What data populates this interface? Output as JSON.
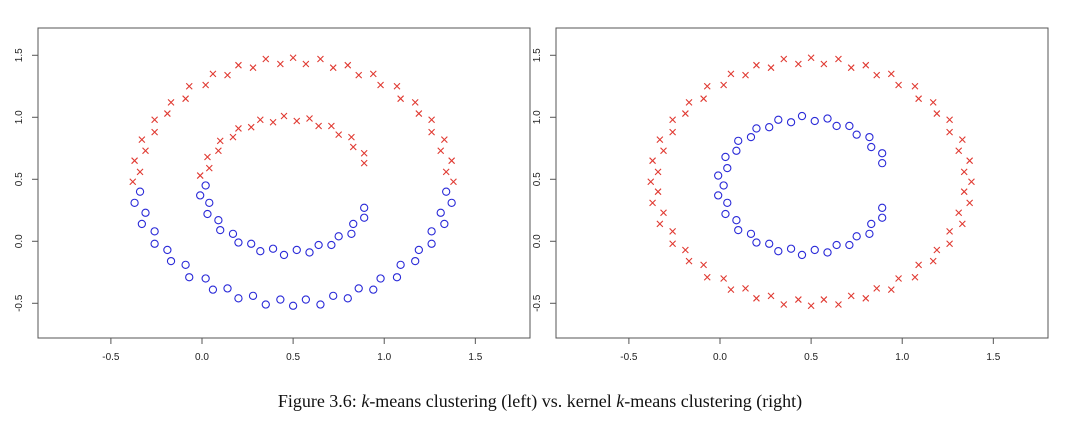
{
  "chart_data": [
    {
      "type": "scatter",
      "xlim": [
        -0.9,
        1.8
      ],
      "ylim": [
        -0.78,
        1.72
      ],
      "xticks": [
        -0.5,
        {
          "value": 0,
          "label": "0.0"
        },
        0.5,
        {
          "value": 1,
          "label": "1.0"
        },
        1.5
      ],
      "yticks": [
        -0.5,
        {
          "value": 0,
          "label": "0.0"
        },
        0.5,
        {
          "value": 1,
          "label": "1.0"
        },
        1.5
      ],
      "series": [
        {
          "color": "#e03a32",
          "marker": "x",
          "x": [
            1.38,
            1.37,
            1.33,
            1.26,
            1.17,
            1.07,
            0.94,
            0.8,
            0.65,
            0.5,
            0.35,
            0.2,
            0.06,
            -0.07,
            -0.17,
            -0.26,
            -0.33,
            -0.37,
            -0.38,
            1.34,
            1.31,
            1.26,
            1.19,
            1.09,
            0.98,
            0.86,
            0.72,
            0.57,
            0.43,
            0.28,
            0.14,
            0.02,
            -0.09,
            -0.19,
            -0.26,
            -0.31,
            -0.34,
            0.89,
            0.83,
            0.75,
            0.64,
            0.52,
            0.39,
            0.27,
            0.17,
            0.09,
            0.04,
            0.89,
            0.82,
            0.71,
            0.59,
            0.45,
            0.32,
            0.2,
            0.1,
            0.03,
            -0.01
          ],
          "values": [
            0.48,
            0.65,
            0.82,
            0.98,
            1.12,
            1.25,
            1.35,
            1.42,
            1.47,
            1.48,
            1.47,
            1.42,
            1.35,
            1.25,
            1.12,
            0.98,
            0.82,
            0.65,
            0.48,
            0.56,
            0.73,
            0.88,
            1.03,
            1.15,
            1.26,
            1.34,
            1.4,
            1.43,
            1.43,
            1.4,
            1.34,
            1.26,
            1.15,
            1.03,
            0.88,
            0.73,
            0.56,
            0.63,
            0.76,
            0.86,
            0.93,
            0.97,
            0.96,
            0.92,
            0.84,
            0.73,
            0.59,
            0.71,
            0.84,
            0.93,
            0.99,
            1.01,
            0.98,
            0.91,
            0.81,
            0.68,
            0.53
          ]
        },
        {
          "color": "#2a2ad8",
          "marker": "o",
          "x": [
            -0.37,
            -0.33,
            -0.26,
            -0.17,
            -0.07,
            0.06,
            0.2,
            0.35,
            0.5,
            0.65,
            0.8,
            0.94,
            1.07,
            1.17,
            1.26,
            1.33,
            1.37,
            -0.34,
            -0.31,
            -0.26,
            -0.19,
            -0.09,
            0.02,
            0.14,
            0.28,
            0.43,
            0.57,
            0.72,
            0.86,
            0.98,
            1.09,
            1.19,
            1.26,
            1.31,
            1.34,
            0.02,
            0.04,
            0.09,
            0.17,
            0.27,
            0.39,
            0.52,
            0.64,
            0.75,
            0.83,
            0.89,
            -0.01,
            0.03,
            0.1,
            0.2,
            0.32,
            0.45,
            0.59,
            0.71,
            0.82,
            0.89
          ],
          "values": [
            0.31,
            0.14,
            -0.02,
            -0.16,
            -0.29,
            -0.39,
            -0.46,
            -0.51,
            -0.52,
            -0.51,
            -0.46,
            -0.39,
            -0.29,
            -0.16,
            -0.02,
            0.14,
            0.31,
            0.4,
            0.23,
            0.08,
            -0.07,
            -0.19,
            -0.3,
            -0.38,
            -0.44,
            -0.47,
            -0.47,
            -0.44,
            -0.38,
            -0.3,
            -0.19,
            -0.07,
            0.08,
            0.23,
            0.4,
            0.45,
            0.31,
            0.17,
            0.06,
            -0.02,
            -0.06,
            -0.07,
            -0.03,
            0.04,
            0.14,
            0.27,
            0.37,
            0.22,
            0.09,
            -0.01,
            -0.08,
            -0.11,
            -0.09,
            -0.03,
            0.06,
            0.19
          ]
        }
      ]
    },
    {
      "type": "scatter",
      "xlim": [
        -0.9,
        1.8
      ],
      "ylim": [
        -0.78,
        1.72
      ],
      "xticks": [
        -0.5,
        {
          "value": 0,
          "label": "0.0"
        },
        0.5,
        {
          "value": 1,
          "label": "1.0"
        },
        1.5
      ],
      "yticks": [
        -0.5,
        {
          "value": 0,
          "label": "0.0"
        },
        0.5,
        {
          "value": 1,
          "label": "1.0"
        },
        1.5
      ],
      "series": [
        {
          "color": "#e03a32",
          "marker": "x",
          "x": [
            1.38,
            1.37,
            1.33,
            1.26,
            1.17,
            1.07,
            0.94,
            0.8,
            0.65,
            0.5,
            0.35,
            0.2,
            0.06,
            -0.07,
            -0.17,
            -0.26,
            -0.33,
            -0.37,
            -0.38,
            -0.37,
            -0.33,
            -0.26,
            -0.17,
            -0.07,
            0.06,
            0.2,
            0.35,
            0.5,
            0.65,
            0.8,
            0.94,
            1.07,
            1.17,
            1.26,
            1.33,
            1.37,
            1.34,
            1.31,
            1.26,
            1.19,
            1.09,
            0.98,
            0.86,
            0.72,
            0.57,
            0.43,
            0.28,
            0.14,
            0.02,
            -0.09,
            -0.19,
            -0.26,
            -0.31,
            -0.34,
            -0.34,
            -0.31,
            -0.26,
            -0.19,
            -0.09,
            0.02,
            0.14,
            0.28,
            0.43,
            0.57,
            0.72,
            0.86,
            0.98,
            1.09,
            1.19,
            1.26,
            1.31,
            1.34
          ],
          "values": [
            0.48,
            0.65,
            0.82,
            0.98,
            1.12,
            1.25,
            1.35,
            1.42,
            1.47,
            1.48,
            1.47,
            1.42,
            1.35,
            1.25,
            1.12,
            0.98,
            0.82,
            0.65,
            0.48,
            0.31,
            0.14,
            -0.02,
            -0.16,
            -0.29,
            -0.39,
            -0.46,
            -0.51,
            -0.52,
            -0.51,
            -0.46,
            -0.39,
            -0.29,
            -0.16,
            -0.02,
            0.14,
            0.31,
            0.56,
            0.73,
            0.88,
            1.03,
            1.15,
            1.26,
            1.34,
            1.4,
            1.43,
            1.43,
            1.4,
            1.34,
            1.26,
            1.15,
            1.03,
            0.88,
            0.73,
            0.56,
            0.4,
            0.23,
            0.08,
            -0.07,
            -0.19,
            -0.3,
            -0.38,
            -0.44,
            -0.47,
            -0.47,
            -0.44,
            -0.38,
            -0.3,
            -0.19,
            -0.07,
            0.08,
            0.23,
            0.4
          ]
        },
        {
          "color": "#2a2ad8",
          "marker": "o",
          "x": [
            0.89,
            0.83,
            0.75,
            0.64,
            0.52,
            0.39,
            0.27,
            0.17,
            0.09,
            0.04,
            0.02,
            0.04,
            0.09,
            0.17,
            0.27,
            0.39,
            0.52,
            0.64,
            0.75,
            0.83,
            0.89,
            0.89,
            0.82,
            0.71,
            0.59,
            0.45,
            0.32,
            0.2,
            0.1,
            0.03,
            -0.01,
            -0.01,
            0.03,
            0.1,
            0.2,
            0.32,
            0.45,
            0.59,
            0.71,
            0.82,
            0.89
          ],
          "values": [
            0.63,
            0.76,
            0.86,
            0.93,
            0.97,
            0.96,
            0.92,
            0.84,
            0.73,
            0.59,
            0.45,
            0.31,
            0.17,
            0.06,
            -0.02,
            -0.06,
            -0.07,
            -0.03,
            0.04,
            0.14,
            0.27,
            0.71,
            0.84,
            0.93,
            0.99,
            1.01,
            0.98,
            0.91,
            0.81,
            0.68,
            0.53,
            0.37,
            0.22,
            0.09,
            -0.01,
            -0.08,
            -0.11,
            -0.09,
            -0.03,
            0.06,
            0.19
          ]
        }
      ]
    }
  ],
  "caption": [
    "Figure 3.6: ",
    "k",
    "-means clustering (left) vs. kernel ",
    "k",
    "-means clustering (right)"
  ]
}
